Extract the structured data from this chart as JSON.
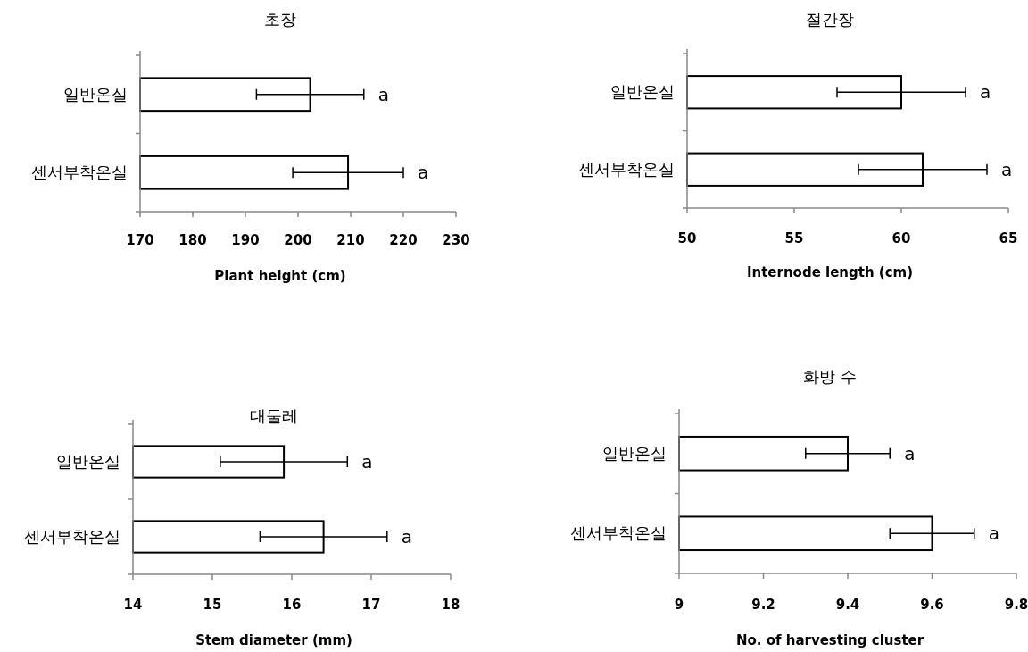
{
  "chart_data": [
    {
      "type": "bar",
      "orientation": "horizontal",
      "title": "초장",
      "xlabel": "Plant height (cm)",
      "categories": [
        "일반온실",
        "센서부착온실"
      ],
      "values": [
        202.3,
        209.5
      ],
      "errors": [
        10.2,
        10.5
      ],
      "color": "#ffffff",
      "xlim": [
        170,
        230
      ],
      "xticks": [
        170,
        180,
        190,
        200,
        210,
        220,
        230
      ],
      "annotations": [
        {
          "text": "a",
          "x": 212.5,
          "y": "일반온실"
        },
        {
          "text": "a",
          "x": 220,
          "y": "센서부착온실"
        }
      ]
    },
    {
      "type": "bar",
      "orientation": "horizontal",
      "title": "절간장",
      "xlabel": "Internode length (cm)",
      "categories": [
        "일반온실",
        "센서부착온실"
      ],
      "values": [
        60,
        61
      ],
      "errors": [
        3,
        3
      ],
      "color": "#ffffff",
      "xlim": [
        50,
        65
      ],
      "xticks": [
        50,
        55,
        60,
        65
      ],
      "annotations": [
        {
          "text": "a",
          "x": 63,
          "y": "일반온실"
        },
        {
          "text": "a",
          "x": 64,
          "y": "센서부착온실"
        }
      ]
    },
    {
      "type": "bar",
      "orientation": "horizontal",
      "title": "대둘레",
      "xlabel": "Stem diameter (mm)",
      "categories": [
        "일반온실",
        "센서부착온실"
      ],
      "values": [
        15.9,
        16.4
      ],
      "errors": [
        0.8,
        0.8
      ],
      "color": "#ffffff",
      "xlim": [
        14,
        18
      ],
      "xticks": [
        14,
        15,
        16,
        17,
        18
      ],
      "annotations": [
        {
          "text": "a",
          "x": 16.7,
          "y": "일반온실"
        },
        {
          "text": "a",
          "x": 17.2,
          "y": "센서부착온실"
        }
      ]
    },
    {
      "type": "bar",
      "orientation": "horizontal",
      "title": "화방 수",
      "xlabel": "No. of harvesting cluster",
      "categories": [
        "일반온실",
        "센서부착온실"
      ],
      "values": [
        9.4,
        9.6
      ],
      "errors": [
        0.1,
        0.1
      ],
      "color": "#ffffff",
      "xlim": [
        9,
        9.8
      ],
      "xticks": [
        9,
        9.2,
        9.4,
        9.6,
        9.8
      ],
      "annotations": [
        {
          "text": "a",
          "x": 9.5,
          "y": "일반온실"
        },
        {
          "text": "a",
          "x": 9.7,
          "y": "센서부착온실"
        }
      ]
    }
  ]
}
